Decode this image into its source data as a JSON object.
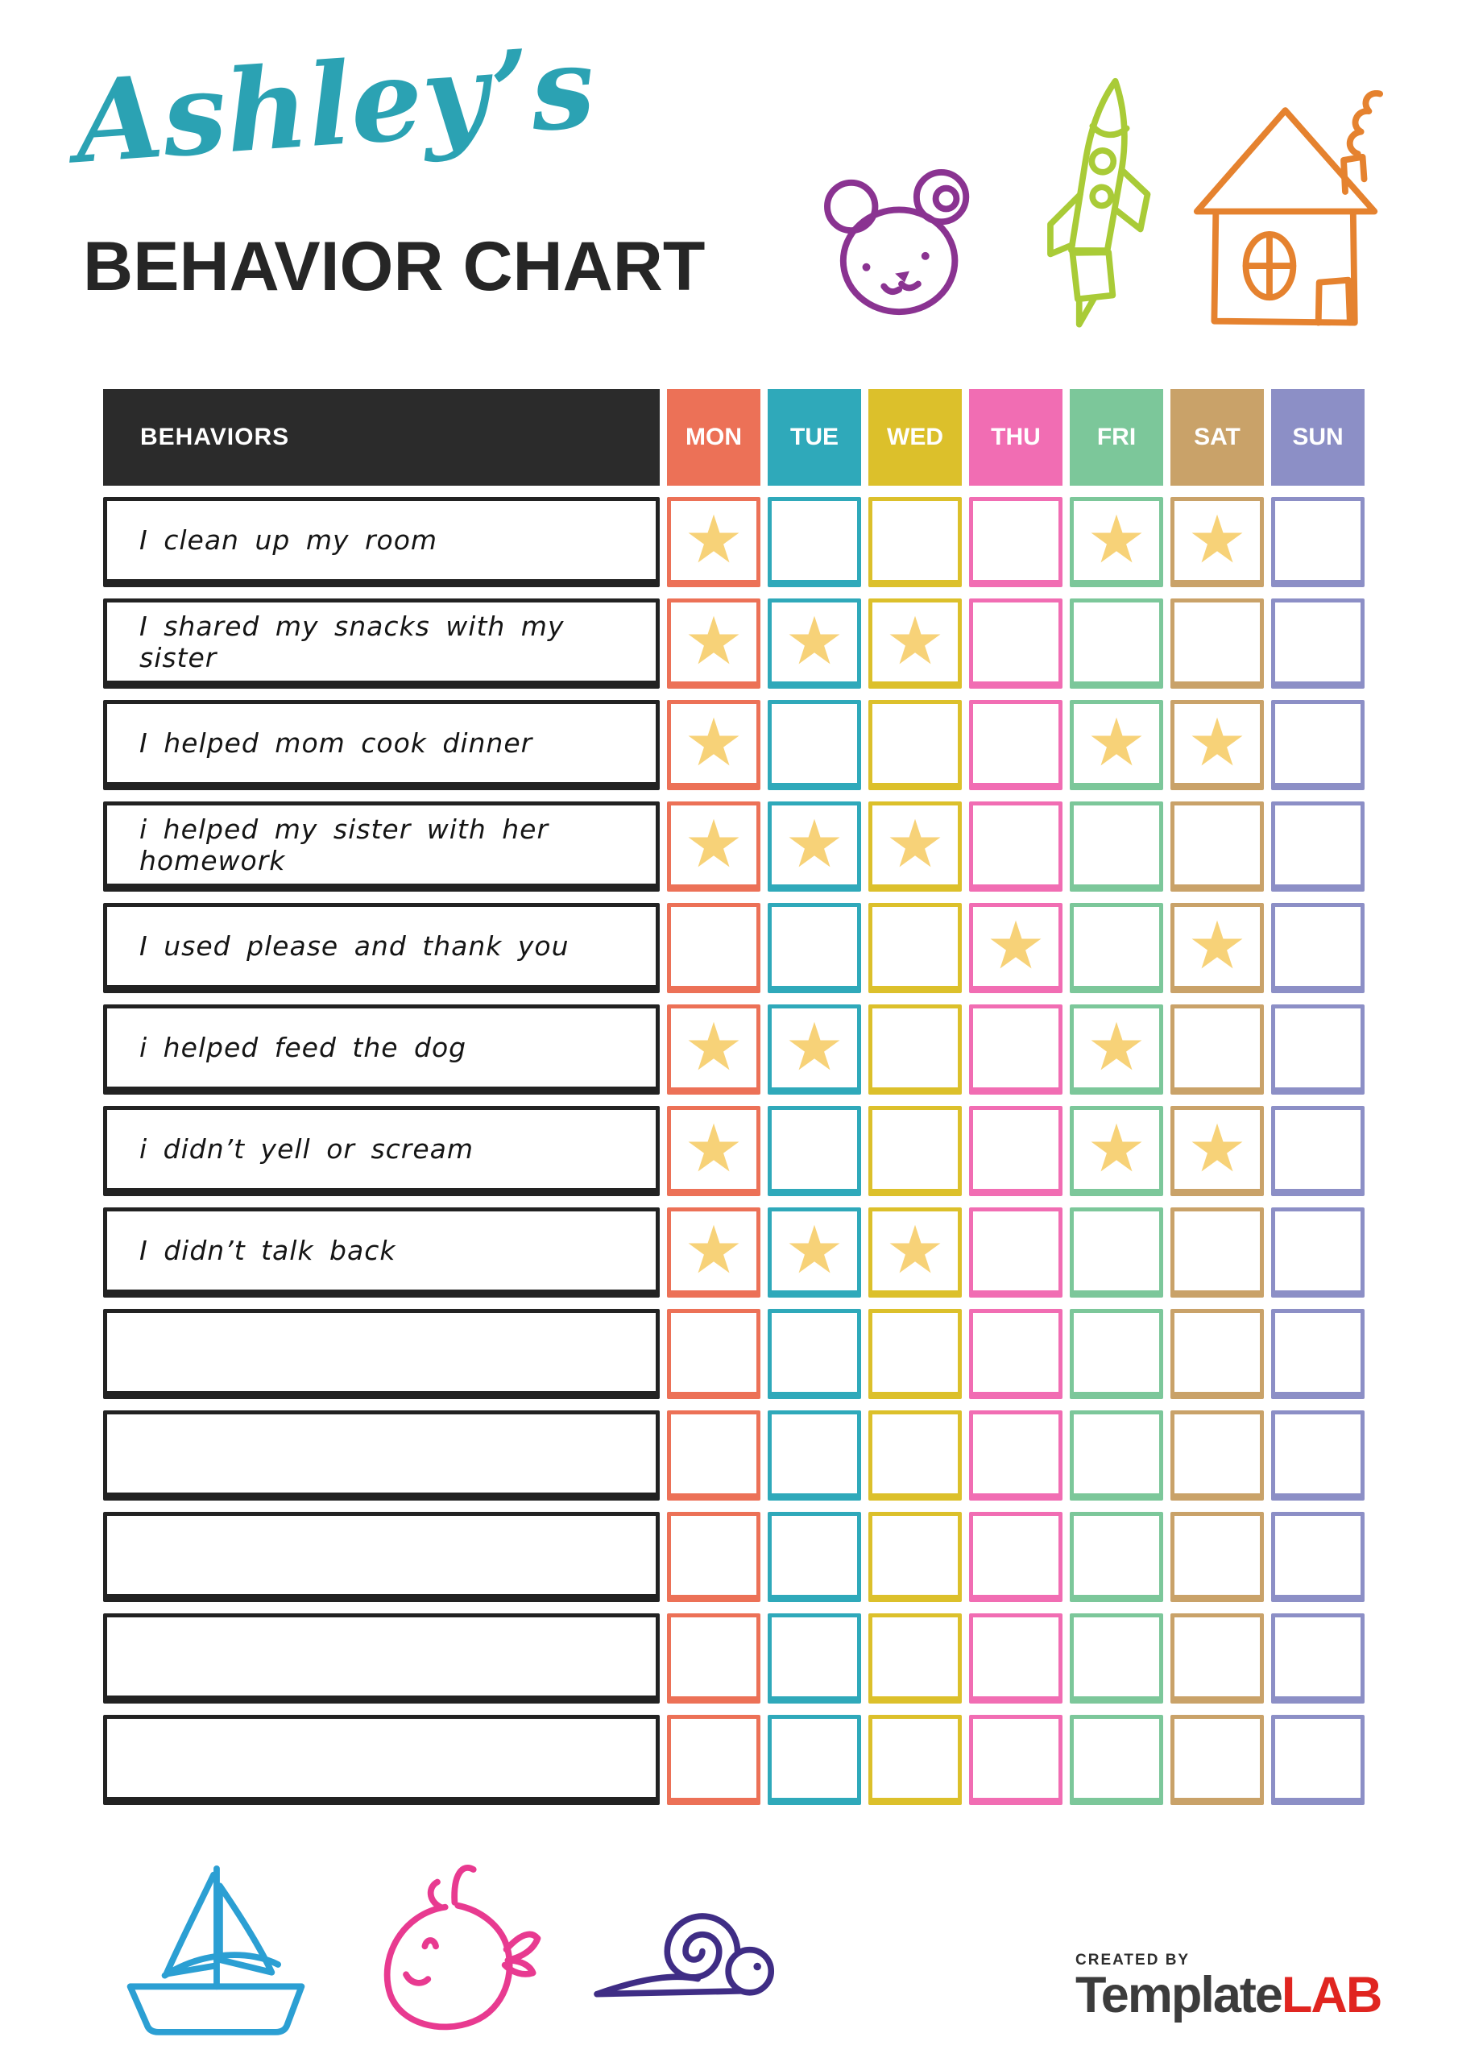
{
  "title": {
    "name": "Ashley’s",
    "subtitle": "BEHAVIOR CHART"
  },
  "colors": {
    "title_script": "#2BA2B3",
    "title_main": "#262626",
    "table_header_bg": "#2B2B2B",
    "star": "#F7D278",
    "logo_accent": "#E02520",
    "logo_brand": "#3C3C3C"
  },
  "decorations": {
    "top": [
      {
        "name": "bear",
        "color": "#8A3391"
      },
      {
        "name": "rocket",
        "color": "#A9CB37"
      },
      {
        "name": "house",
        "color": "#E5822F"
      }
    ],
    "bottom": [
      {
        "name": "sailboat",
        "color": "#2B9FD3"
      },
      {
        "name": "whale",
        "color": "#E83A90"
      },
      {
        "name": "snail",
        "color": "#3F2D85"
      }
    ]
  },
  "table": {
    "behaviors_label": "BEHAVIORS",
    "star_glyph": "★",
    "days": [
      {
        "label": "MON",
        "color": "#EC7157"
      },
      {
        "label": "TUE",
        "color": "#2FA9BA"
      },
      {
        "label": "WED",
        "color": "#DCC02B"
      },
      {
        "label": "THU",
        "color": "#F16DB3"
      },
      {
        "label": "FRI",
        "color": "#7CC79A"
      },
      {
        "label": "SAT",
        "color": "#C9A269"
      },
      {
        "label": "SUN",
        "color": "#8C8FC6"
      }
    ],
    "rows": [
      {
        "label": "I clean up my room",
        "stars": [
          "MON",
          "FRI",
          "SAT"
        ]
      },
      {
        "label": "I shared my snacks with my sister",
        "stars": [
          "MON",
          "TUE",
          "WED"
        ]
      },
      {
        "label": "I helped mom cook dinner",
        "stars": [
          "MON",
          "FRI",
          "SAT"
        ]
      },
      {
        "label": "i helped my sister with her homework",
        "stars": [
          "MON",
          "TUE",
          "WED"
        ]
      },
      {
        "label": "I used please and thank you",
        "stars": [
          "THU",
          "SAT"
        ]
      },
      {
        "label": "i helped feed the dog",
        "stars": [
          "MON",
          "TUE",
          "FRI"
        ]
      },
      {
        "label": "i didn’t yell or scream",
        "stars": [
          "MON",
          "FRI",
          "SAT"
        ]
      },
      {
        "label": "I didn’t talk back",
        "stars": [
          "MON",
          "TUE",
          "WED"
        ]
      },
      {
        "label": "",
        "stars": []
      },
      {
        "label": "",
        "stars": []
      },
      {
        "label": "",
        "stars": []
      },
      {
        "label": "",
        "stars": []
      },
      {
        "label": "",
        "stars": []
      }
    ]
  },
  "footer": {
    "created_by": "CREATED BY",
    "brand": "Template",
    "brand_accent": "LAB"
  }
}
